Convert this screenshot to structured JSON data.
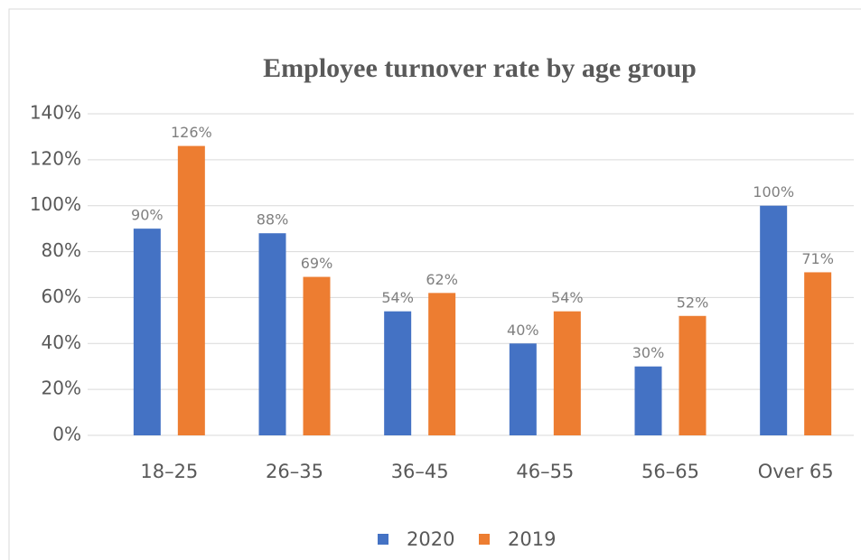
{
  "chart_data": {
    "type": "bar",
    "title": "Employee turnover rate by age group",
    "categories": [
      "18–25",
      "26–35",
      "36–45",
      "46–55",
      "56–65",
      "Over 65"
    ],
    "series": [
      {
        "name": "2020",
        "color": "#4472c4",
        "values": [
          90,
          88,
          54,
          40,
          30,
          100
        ],
        "value_labels": [
          "90%",
          "88%",
          "54%",
          "40%",
          "30%",
          "100%"
        ]
      },
      {
        "name": "2019",
        "color": "#ed7d31",
        "values": [
          126,
          69,
          62,
          54,
          52,
          71
        ],
        "value_labels": [
          "126%",
          "69%",
          "62%",
          "54%",
          "52%",
          "71%"
        ]
      }
    ],
    "ylim": [
      0,
      140
    ],
    "yticks": [
      {
        "value": 0,
        "label": "0%"
      },
      {
        "value": 20,
        "label": "20%"
      },
      {
        "value": 40,
        "label": "40%"
      },
      {
        "value": 60,
        "label": "60%"
      },
      {
        "value": 80,
        "label": "80%"
      },
      {
        "value": 100,
        "label": "100%"
      },
      {
        "value": 120,
        "label": "120%"
      },
      {
        "value": 140,
        "label": "140%"
      }
    ],
    "grid": true,
    "legend": "bottom"
  }
}
